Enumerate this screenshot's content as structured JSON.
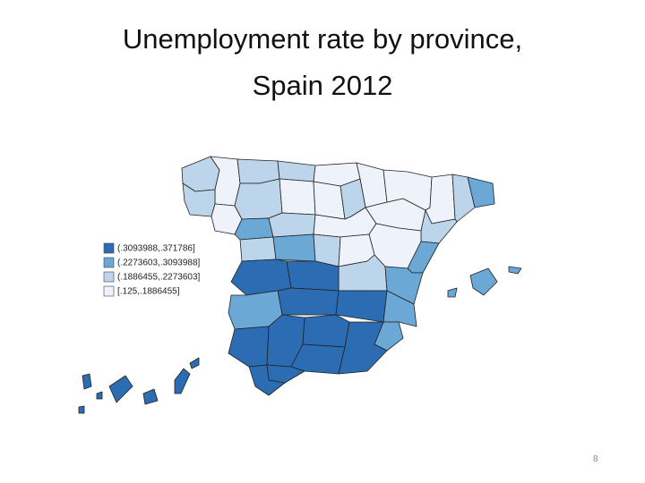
{
  "slide": {
    "title": "Unemployment rate by province, Spain 2012",
    "legend": [
      {
        "label": "(.3093988,.371786]",
        "color": "#2b6cb2"
      },
      {
        "label": "(.2273603,.3093988]",
        "color": "#6ba8d6"
      },
      {
        "label": "(.1886455,.2273603]",
        "color": "#bcd5ea"
      },
      {
        "label": "[.125,.1886455]",
        "color": "#eef3fb"
      }
    ],
    "page_number": "8"
  }
}
